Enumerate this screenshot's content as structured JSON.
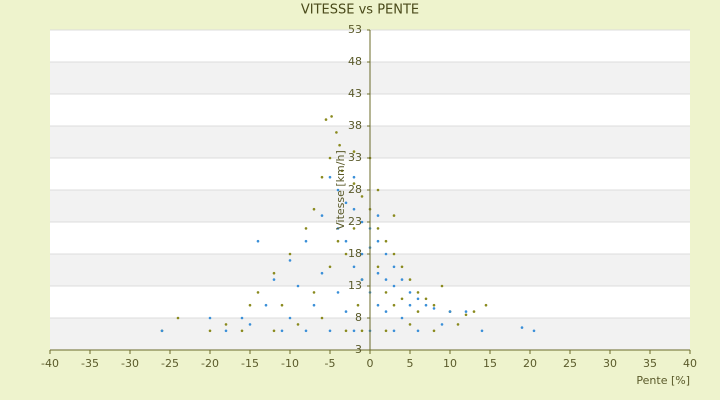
{
  "chart_data": {
    "type": "scatter",
    "title": "VITESSE vs PENTE",
    "x_label": "Pente [%]",
    "y_label": "Vitesse [km/h]",
    "xlim": [
      -40,
      40
    ],
    "xticks": [
      -40,
      -35,
      -30,
      -25,
      -20,
      -15,
      -10,
      -5,
      0,
      5,
      10,
      15,
      20,
      25,
      30,
      35,
      40
    ],
    "ylim": [
      3,
      53
    ],
    "yticks": [
      3,
      8,
      13,
      18,
      23,
      28,
      33,
      38,
      43,
      48,
      53
    ],
    "grid": true,
    "series": [
      {
        "color": "#8a8a1e",
        "x": [
          -5.5,
          -4.8,
          -4.2,
          -3.8,
          -5,
          -6,
          -3.5,
          -2,
          -1,
          0,
          1,
          2,
          3,
          4,
          5,
          6,
          7,
          8,
          10,
          12,
          14.5,
          -7,
          -8,
          -10,
          -12,
          -14,
          -15,
          -18,
          -20,
          -24,
          -26,
          -16,
          -12,
          -9,
          -6,
          -3,
          -1,
          2,
          5,
          8,
          11,
          -4,
          -2,
          -3,
          1,
          2,
          3,
          -1,
          -5,
          0,
          1,
          -2,
          3,
          4,
          6,
          9,
          13,
          -11,
          -7,
          -1.5
        ],
        "y": [
          39,
          39.5,
          37,
          35,
          33,
          30,
          31,
          29,
          27,
          25,
          22,
          20,
          18,
          16,
          14,
          12,
          11,
          10,
          9,
          8.5,
          10,
          25,
          22,
          18,
          15,
          12,
          10,
          7,
          6,
          8,
          6,
          6,
          6,
          7,
          8,
          6,
          6,
          6,
          7,
          6,
          7,
          20,
          22,
          18,
          16,
          12,
          10,
          14,
          16,
          33,
          28,
          34,
          24,
          11,
          9,
          13,
          9,
          10,
          12,
          10
        ]
      },
      {
        "color": "#3a8fd8",
        "x": [
          -5,
          -4,
          -3,
          -2,
          -1,
          0,
          1,
          2,
          3,
          4,
          5,
          6,
          7,
          8,
          10,
          12,
          -6,
          -8,
          -10,
          -12,
          -14,
          -13,
          -15,
          -18,
          -26,
          -20,
          -11,
          -8,
          -5,
          -2,
          0,
          3,
          6,
          9,
          14,
          19,
          20.5,
          -3,
          -2,
          -1,
          0,
          1,
          2,
          -4,
          -6,
          -7,
          -3,
          -1,
          1,
          3,
          -9,
          -2,
          0,
          2,
          4,
          5,
          -16,
          -10,
          -4,
          1
        ],
        "y": [
          30,
          28,
          26,
          25,
          23,
          22,
          20,
          18,
          16,
          14,
          12,
          11,
          10,
          9.5,
          9,
          9,
          24,
          20,
          17,
          14,
          20,
          10,
          7,
          6,
          6,
          8,
          6,
          6,
          6,
          6,
          6,
          6,
          6,
          7,
          6,
          6.5,
          6,
          20,
          16,
          14,
          12,
          10,
          9,
          12,
          15,
          10,
          9,
          18,
          15,
          13,
          13,
          30,
          19,
          14,
          8,
          10,
          8,
          8,
          22,
          24
        ]
      }
    ]
  }
}
